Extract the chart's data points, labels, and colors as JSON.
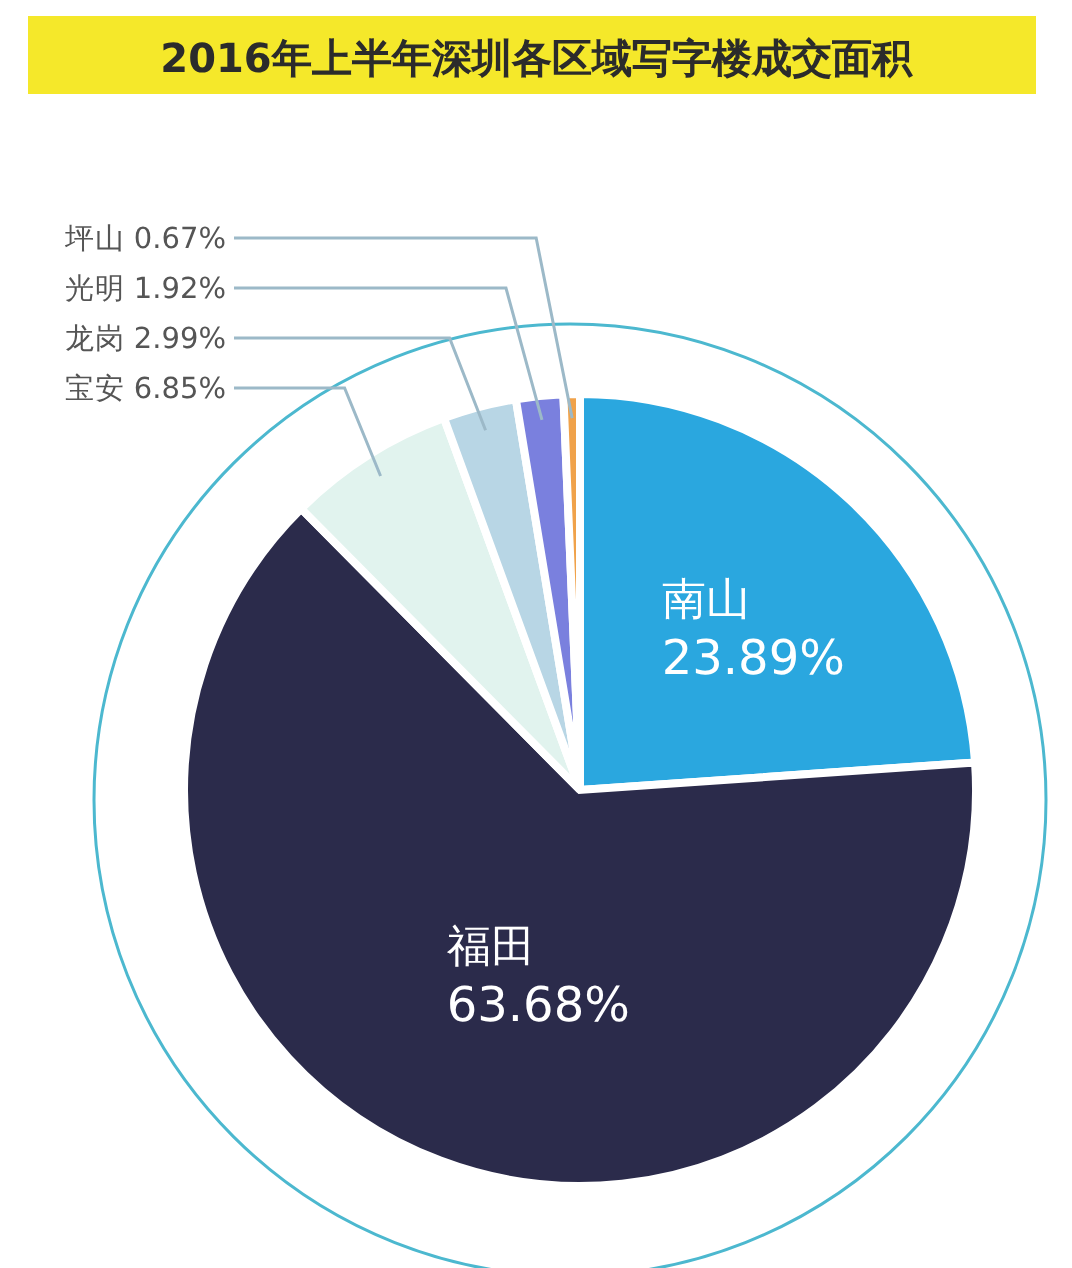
{
  "chart_data": {
    "type": "pie",
    "title": "2016年上半年深圳各区域写字楼成交面积",
    "categories": [
      "南山",
      "福田",
      "宝安",
      "龙岗",
      "光明",
      "坪山"
    ],
    "values": [
      23.89,
      63.68,
      6.85,
      2.99,
      1.92,
      0.67
    ],
    "value_labels": [
      "23.89%",
      "63.68%",
      "6.85%",
      "2.99%",
      "1.92%",
      "0.67%"
    ],
    "colors": [
      "#2aa7df",
      "#2b2b4b",
      "#e1f3ee",
      "#b8d6e5",
      "#7a80de",
      "#f0a24a"
    ]
  }
}
